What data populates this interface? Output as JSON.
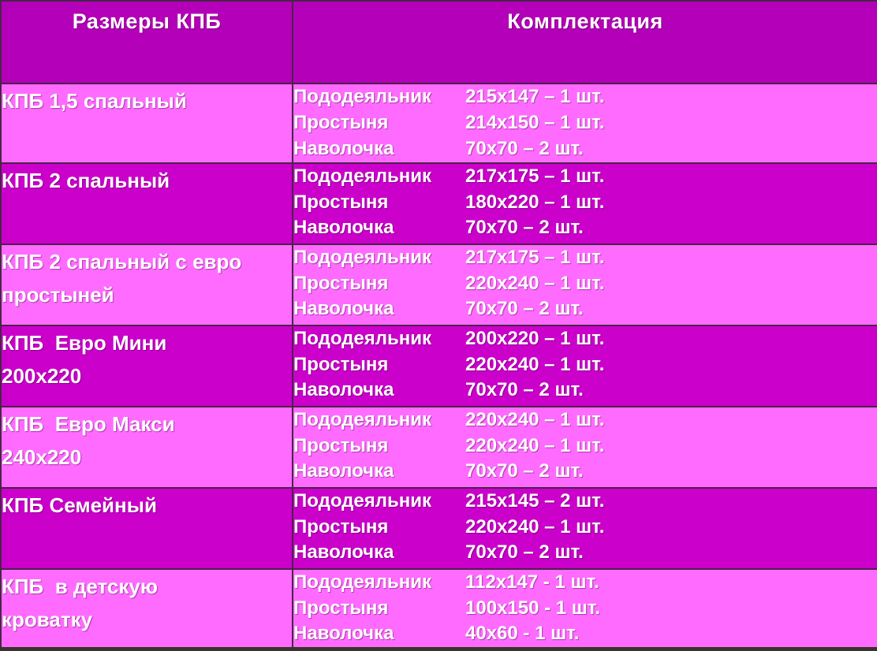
{
  "colors": {
    "header_bg": "#b400b8",
    "row_dark_bg": "#cb00cb",
    "row_light_bg": "#ff6bff",
    "grid_border": "#4a234a",
    "bottom_strip": "#38342c",
    "text": "#ffffff"
  },
  "table": {
    "headers": {
      "sizes": "Размеры КПБ",
      "contents": "Комплектация"
    },
    "rows": [
      {
        "size": "КПБ 1,5 спальный",
        "items": [
          {
            "name": "Пододеяльник",
            "value": "215х147 – 1 шт."
          },
          {
            "name": "Простыня",
            "value": "214х150 – 1 шт."
          },
          {
            "name": "Наволочка",
            "value": "70х70 – 2 шт."
          }
        ]
      },
      {
        "size": "КПБ 2 спальный",
        "items": [
          {
            "name": "Пододеяльник",
            "value": "217х175 – 1 шт."
          },
          {
            "name": "Простыня",
            "value": "180х220 – 1 шт."
          },
          {
            "name": "Наволочка",
            "value": "70х70 – 2 шт."
          }
        ]
      },
      {
        "size": "КПБ 2 спальный с евро\nпростыней",
        "items": [
          {
            "name": "Пододеяльник",
            "value": "217х175 – 1 шт."
          },
          {
            "name": "Простыня",
            "value": "220х240 – 1 шт."
          },
          {
            "name": "Наволочка",
            "value": "70х70 – 2 шт."
          }
        ]
      },
      {
        "size": "КПБ  Евро Мини\n200х220",
        "items": [
          {
            "name": "Пододеяльник",
            "value": "200х220 – 1 шт."
          },
          {
            "name": "Простыня",
            "value": "220х240 – 1 шт."
          },
          {
            "name": "Наволочка",
            "value": "70х70 – 2 шт."
          }
        ]
      },
      {
        "size": "КПБ  Евро Макси\n240х220",
        "items": [
          {
            "name": "Пододеяльник",
            "value": "220х240 – 1 шт."
          },
          {
            "name": "Простыня",
            "value": "220х240 – 1 шт."
          },
          {
            "name": "Наволочка",
            "value": "70х70 – 2 шт."
          }
        ]
      },
      {
        "size": "КПБ Семейный",
        "items": [
          {
            "name": "Пододеяльник",
            "value": "215х145 – 2 шт."
          },
          {
            "name": "Простыня",
            "value": "220х240 – 1 шт."
          },
          {
            "name": "Наволочка",
            "value": "70х70 – 2 шт."
          }
        ]
      },
      {
        "size": "КПБ  в детскую\nкроватку",
        "items": [
          {
            "name": "Пододеяльник",
            "value": "112х147 - 1 шт."
          },
          {
            "name": "Простыня",
            "value": "100х150 - 1 шт."
          },
          {
            "name": "Наволочка",
            "value": "40х60 - 1 шт."
          }
        ]
      }
    ]
  }
}
